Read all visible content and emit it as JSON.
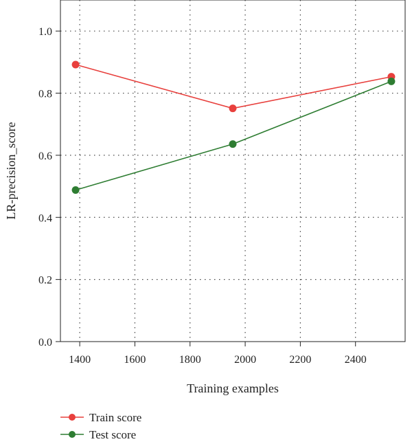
{
  "chart_data": {
    "type": "line",
    "xlabel": "Training examples",
    "ylabel": "LR-precision_score",
    "xlim": [
      1330,
      2580
    ],
    "ylim": [
      0.0,
      1.1
    ],
    "xticks": [
      1400,
      1600,
      1800,
      2000,
      2200,
      2400
    ],
    "xtick_labels": [
      "1400",
      "1600",
      "1800",
      "2000",
      "2200",
      "2400"
    ],
    "yticks": [
      0.0,
      0.2,
      0.4,
      0.6,
      0.8,
      1.0
    ],
    "ytick_labels": [
      "0.0",
      "0.2",
      "0.4",
      "0.6",
      "0.8",
      "1.0"
    ],
    "grid": true,
    "legend_position": "bottom-left, below plot",
    "x": [
      1385,
      1955,
      2530
    ],
    "series": [
      {
        "name": "Train score",
        "color": "#e8403d",
        "values": [
          0.892,
          0.751,
          0.853
        ]
      },
      {
        "name": "Test score",
        "color": "#2e7d32",
        "values": [
          0.488,
          0.636,
          0.838
        ]
      }
    ]
  }
}
